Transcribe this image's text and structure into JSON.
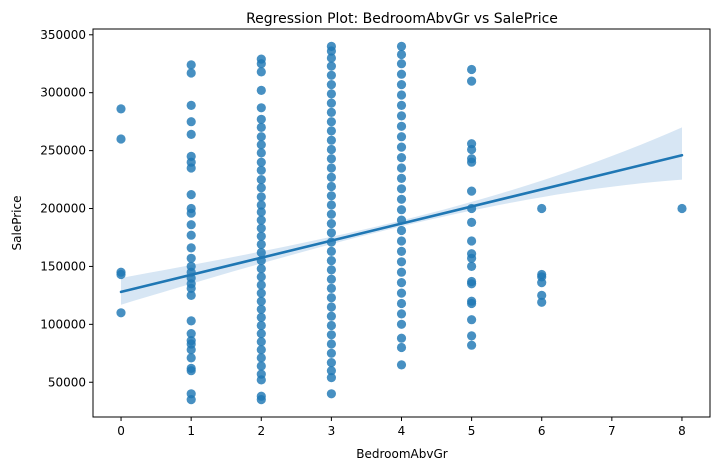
{
  "chart_data": {
    "type": "scatter",
    "title": "Regression Plot: BedroomAbvGr vs SalePrice",
    "xlabel": "BedroomAbvGr",
    "ylabel": "SalePrice",
    "xlim": [
      -0.4,
      8.4
    ],
    "ylim": [
      20000,
      355000
    ],
    "x_ticks": [
      0,
      1,
      2,
      3,
      4,
      5,
      6,
      7,
      8
    ],
    "y_ticks": [
      50000,
      100000,
      150000,
      200000,
      250000,
      300000,
      350000
    ],
    "grid": false,
    "point_color": "#1f77b4",
    "line_color": "#1f77b4",
    "band_color": "#c6dbef",
    "regression": {
      "x": [
        0,
        8
      ],
      "y": [
        128000,
        246000
      ],
      "ci_lower": [
        117000,
        225000
      ],
      "ci_upper": [
        140000,
        270000
      ]
    },
    "series": [
      {
        "points": [
          [
            0,
            286000
          ],
          [
            0,
            260000
          ],
          [
            0,
            145000
          ],
          [
            0,
            143000
          ],
          [
            0,
            110000
          ],
          [
            1,
            324000
          ],
          [
            1,
            317000
          ],
          [
            1,
            289000
          ],
          [
            1,
            275000
          ],
          [
            1,
            264000
          ],
          [
            1,
            245000
          ],
          [
            1,
            240000
          ],
          [
            1,
            235000
          ],
          [
            1,
            212000
          ],
          [
            1,
            200000
          ],
          [
            1,
            196000
          ],
          [
            1,
            186000
          ],
          [
            1,
            177000
          ],
          [
            1,
            166000
          ],
          [
            1,
            157000
          ],
          [
            1,
            150000
          ],
          [
            1,
            145000
          ],
          [
            1,
            140000
          ],
          [
            1,
            135000
          ],
          [
            1,
            131000
          ],
          [
            1,
            125000
          ],
          [
            1,
            103000
          ],
          [
            1,
            92000
          ],
          [
            1,
            86000
          ],
          [
            1,
            83000
          ],
          [
            1,
            78000
          ],
          [
            1,
            71000
          ],
          [
            1,
            62000
          ],
          [
            1,
            60000
          ],
          [
            1,
            40000
          ],
          [
            1,
            35000
          ],
          [
            2,
            329000
          ],
          [
            2,
            325000
          ],
          [
            2,
            318000
          ],
          [
            2,
            302000
          ],
          [
            2,
            287000
          ],
          [
            2,
            277000
          ],
          [
            2,
            270000
          ],
          [
            2,
            262000
          ],
          [
            2,
            255000
          ],
          [
            2,
            248000
          ],
          [
            2,
            240000
          ],
          [
            2,
            233000
          ],
          [
            2,
            225000
          ],
          [
            2,
            218000
          ],
          [
            2,
            210000
          ],
          [
            2,
            203000
          ],
          [
            2,
            197000
          ],
          [
            2,
            190000
          ],
          [
            2,
            183000
          ],
          [
            2,
            176000
          ],
          [
            2,
            169000
          ],
          [
            2,
            162000
          ],
          [
            2,
            155000
          ],
          [
            2,
            148000
          ],
          [
            2,
            141000
          ],
          [
            2,
            134000
          ],
          [
            2,
            127000
          ],
          [
            2,
            120000
          ],
          [
            2,
            113000
          ],
          [
            2,
            106000
          ],
          [
            2,
            99000
          ],
          [
            2,
            92000
          ],
          [
            2,
            85000
          ],
          [
            2,
            78000
          ],
          [
            2,
            71000
          ],
          [
            2,
            64000
          ],
          [
            2,
            57000
          ],
          [
            2,
            52000
          ],
          [
            2,
            38000
          ],
          [
            2,
            35000
          ],
          [
            3,
            340000
          ],
          [
            3,
            336000
          ],
          [
            3,
            330000
          ],
          [
            3,
            323000
          ],
          [
            3,
            315000
          ],
          [
            3,
            307000
          ],
          [
            3,
            299000
          ],
          [
            3,
            291000
          ],
          [
            3,
            283000
          ],
          [
            3,
            275000
          ],
          [
            3,
            267000
          ],
          [
            3,
            259000
          ],
          [
            3,
            251000
          ],
          [
            3,
            243000
          ],
          [
            3,
            235000
          ],
          [
            3,
            227000
          ],
          [
            3,
            219000
          ],
          [
            3,
            211000
          ],
          [
            3,
            203000
          ],
          [
            3,
            195000
          ],
          [
            3,
            187000
          ],
          [
            3,
            179000
          ],
          [
            3,
            171000
          ],
          [
            3,
            163000
          ],
          [
            3,
            155000
          ],
          [
            3,
            147000
          ],
          [
            3,
            139000
          ],
          [
            3,
            131000
          ],
          [
            3,
            123000
          ],
          [
            3,
            115000
          ],
          [
            3,
            107000
          ],
          [
            3,
            99000
          ],
          [
            3,
            91000
          ],
          [
            3,
            83000
          ],
          [
            3,
            75000
          ],
          [
            3,
            67000
          ],
          [
            3,
            60000
          ],
          [
            3,
            54000
          ],
          [
            3,
            40000
          ],
          [
            4,
            340000
          ],
          [
            4,
            333000
          ],
          [
            4,
            325000
          ],
          [
            4,
            316000
          ],
          [
            4,
            307000
          ],
          [
            4,
            298000
          ],
          [
            4,
            289000
          ],
          [
            4,
            280000
          ],
          [
            4,
            271000
          ],
          [
            4,
            262000
          ],
          [
            4,
            253000
          ],
          [
            4,
            244000
          ],
          [
            4,
            235000
          ],
          [
            4,
            226000
          ],
          [
            4,
            217000
          ],
          [
            4,
            208000
          ],
          [
            4,
            199000
          ],
          [
            4,
            190000
          ],
          [
            4,
            181000
          ],
          [
            4,
            172000
          ],
          [
            4,
            163000
          ],
          [
            4,
            154000
          ],
          [
            4,
            145000
          ],
          [
            4,
            136000
          ],
          [
            4,
            127000
          ],
          [
            4,
            118000
          ],
          [
            4,
            109000
          ],
          [
            4,
            100000
          ],
          [
            4,
            88000
          ],
          [
            4,
            80000
          ],
          [
            4,
            65000
          ],
          [
            5,
            320000
          ],
          [
            5,
            310000
          ],
          [
            5,
            256000
          ],
          [
            5,
            251000
          ],
          [
            5,
            243000
          ],
          [
            5,
            240000
          ],
          [
            5,
            215000
          ],
          [
            5,
            200000
          ],
          [
            5,
            188000
          ],
          [
            5,
            172000
          ],
          [
            5,
            161000
          ],
          [
            5,
            157000
          ],
          [
            5,
            150000
          ],
          [
            5,
            137000
          ],
          [
            5,
            135000
          ],
          [
            5,
            120000
          ],
          [
            5,
            118000
          ],
          [
            5,
            104000
          ],
          [
            5,
            90000
          ],
          [
            5,
            82000
          ],
          [
            6,
            200000
          ],
          [
            6,
            143000
          ],
          [
            6,
            141000
          ],
          [
            6,
            136000
          ],
          [
            6,
            125000
          ],
          [
            6,
            119000
          ],
          [
            8,
            200000
          ]
        ]
      }
    ]
  }
}
